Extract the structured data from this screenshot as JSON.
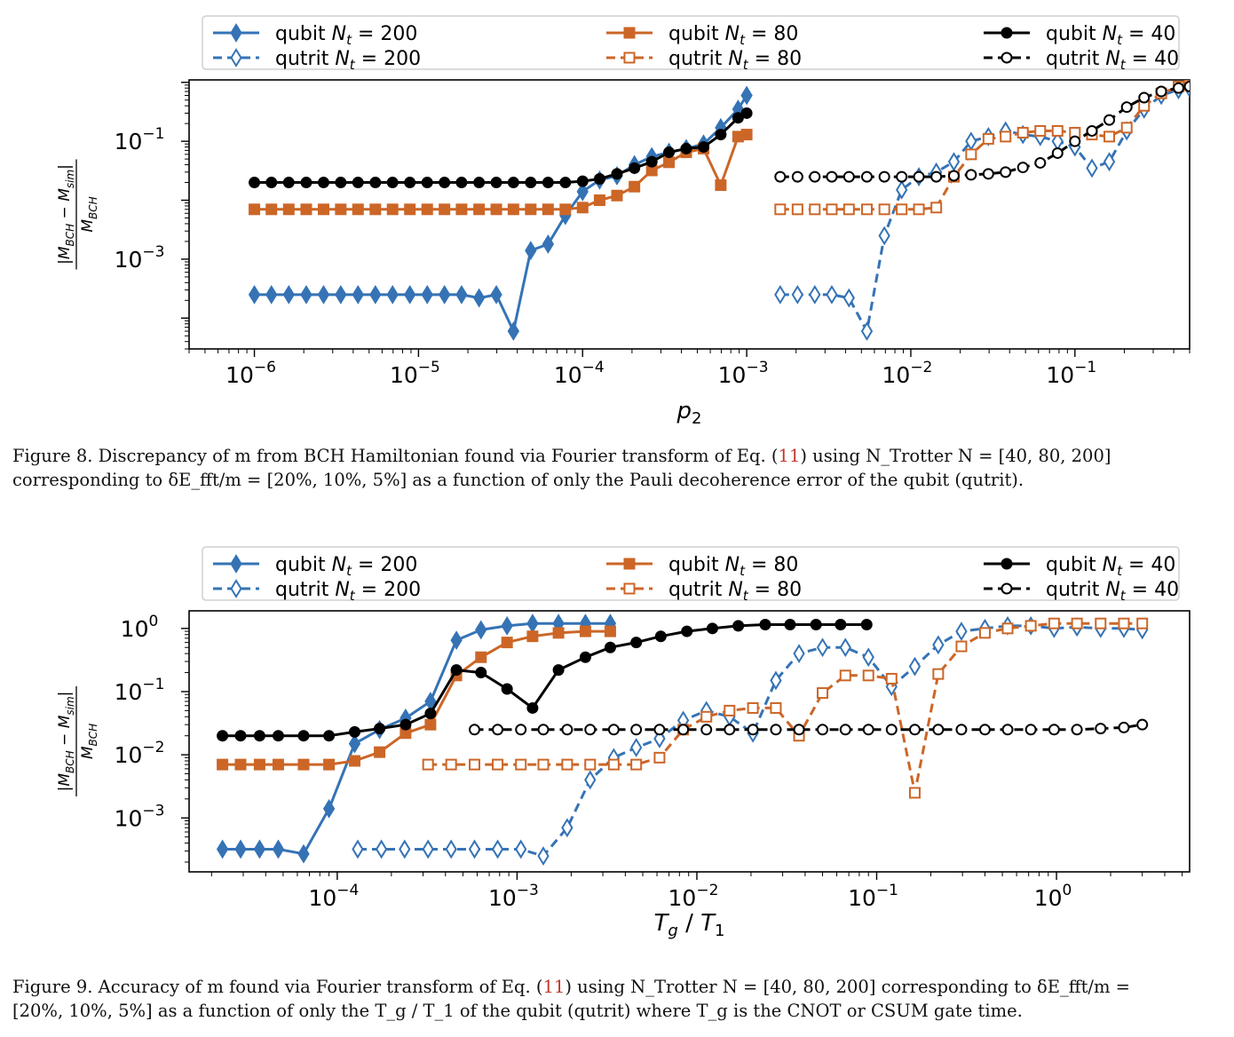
{
  "colors": {
    "blue": "#3573b5",
    "orange": "#cc6627",
    "black": "#000000"
  },
  "series_names": [
    "qubit N_t = 200",
    "qutrit N_t = 200",
    "qubit N_t = 80",
    "qutrit N_t = 80",
    "qubit N_t = 40",
    "qutrit N_t = 40"
  ],
  "legend_labels": [
    {
      "prefix": "qubit ",
      "sub": "200"
    },
    {
      "prefix": "qubit ",
      "sub": "80"
    },
    {
      "prefix": "qubit ",
      "sub": "40"
    },
    {
      "prefix": "qutrit ",
      "sub": "200"
    },
    {
      "prefix": "qutrit ",
      "sub": "80"
    },
    {
      "prefix": "qutrit ",
      "sub": "40"
    }
  ],
  "captions": {
    "fig8_l1_a": "Figure 8. Discrepancy of m from BCH Hamiltonian found via Fourier transform of Eq. (",
    "fig8_ref": "11",
    "fig8_l1_b": ") using N_Trotter N = [40, 80, 200]",
    "fig8_l2": "corresponding to δE_fft/m = [20%, 10%, 5%] as a function of only the Pauli decoherence error of the qubit (qutrit).",
    "fig9_l1_a": "Figure 9. Accuracy of m found via Fourier transform of Eq. (",
    "fig9_ref": "11",
    "fig9_l1_b": ") using N_Trotter N = [40, 80, 200] corresponding to δE_fft/m =",
    "fig9_l2": "[20%, 10%, 5%] as a function of only the T_g / T_1 of the qubit (qutrit) where T_g is the CNOT or CSUM gate time."
  },
  "chart_data": [
    {
      "type": "line",
      "xscale": "log",
      "yscale": "log",
      "xlabel": "p_2",
      "ylabel": "|M_BCH − M_sim| / M_BCH",
      "xlim": [
        4e-07,
        0.5
      ],
      "ylim": [
        3e-05,
        1.1
      ],
      "xticks": [
        {
          "label": "10",
          "exp": "−6",
          "v": 1e-06
        },
        {
          "label": "10",
          "exp": "−5",
          "v": 1e-05
        },
        {
          "label": "10",
          "exp": "−4",
          "v": 0.0001
        },
        {
          "label": "10",
          "exp": "−3",
          "v": 0.001
        },
        {
          "label": "10",
          "exp": "−2",
          "v": 0.01
        },
        {
          "label": "10",
          "exp": "−1",
          "v": 0.1
        }
      ],
      "yticks": [
        {
          "label": "10",
          "exp": "−1",
          "v": 0.1
        },
        {
          "label": "10",
          "exp": "−3",
          "v": 0.001
        }
      ],
      "legend_position": "top",
      "series": [
        {
          "name": "qubit N_t = 200",
          "x": [
            1e-06,
            1.27e-06,
            1.62e-06,
            2.07e-06,
            2.64e-06,
            3.36e-06,
            4.28e-06,
            5.46e-06,
            6.95e-06,
            8.86e-06,
            1.13e-05,
            1.44e-05,
            1.83e-05,
            2.34e-05,
            2.98e-05,
            3.79e-05,
            4.83e-05,
            6.16e-05,
            7.85e-05,
            0.0001,
            0.000127,
            0.000162,
            0.000207,
            0.000264,
            0.000336,
            0.000428,
            0.000546,
            0.000695,
            0.000886,
            0.001
          ],
          "y": [
            0.00025,
            0.00025,
            0.00025,
            0.00025,
            0.00025,
            0.00025,
            0.00025,
            0.00025,
            0.00025,
            0.00025,
            0.00025,
            0.00025,
            0.00025,
            0.00022,
            0.00025,
            6e-05,
            0.0014,
            0.0018,
            0.0055,
            0.014,
            0.022,
            0.026,
            0.04,
            0.055,
            0.065,
            0.075,
            0.09,
            0.17,
            0.35,
            0.6
          ]
        },
        {
          "name": "qutrit N_t = 200",
          "x": [
            0.0016,
            0.00204,
            0.0026,
            0.0033,
            0.0042,
            0.0054,
            0.0069,
            0.0088,
            0.0112,
            0.0143,
            0.0183,
            0.0233,
            0.0297,
            0.0378,
            0.0482,
            0.0615,
            0.0784,
            0.1,
            0.127,
            0.162,
            0.207,
            0.264,
            0.336,
            0.428,
            0.5
          ],
          "y": [
            0.00025,
            0.00025,
            0.00025,
            0.00025,
            0.00022,
            6e-05,
            0.0025,
            0.015,
            0.025,
            0.03,
            0.045,
            0.1,
            0.12,
            0.15,
            0.13,
            0.12,
            0.1,
            0.08,
            0.035,
            0.045,
            0.15,
            0.35,
            0.6,
            0.75,
            0.8
          ]
        },
        {
          "name": "qubit N_t = 80",
          "x": [
            1e-06,
            1.27e-06,
            1.62e-06,
            2.07e-06,
            2.64e-06,
            3.36e-06,
            4.28e-06,
            5.46e-06,
            6.95e-06,
            8.86e-06,
            1.13e-05,
            1.44e-05,
            1.83e-05,
            2.34e-05,
            2.98e-05,
            3.79e-05,
            4.83e-05,
            6.16e-05,
            7.85e-05,
            0.0001,
            0.000127,
            0.000162,
            0.000207,
            0.000264,
            0.000336,
            0.000428,
            0.000546,
            0.000695,
            0.000886,
            0.001
          ],
          "y": [
            0.007,
            0.007,
            0.007,
            0.007,
            0.007,
            0.007,
            0.007,
            0.007,
            0.007,
            0.007,
            0.007,
            0.007,
            0.007,
            0.007,
            0.007,
            0.007,
            0.007,
            0.007,
            0.007,
            0.0075,
            0.01,
            0.012,
            0.017,
            0.032,
            0.044,
            0.065,
            0.075,
            0.018,
            0.12,
            0.13
          ]
        },
        {
          "name": "qutrit N_t = 80",
          "x": [
            0.0016,
            0.00204,
            0.0026,
            0.0033,
            0.0042,
            0.0054,
            0.0069,
            0.0088,
            0.0112,
            0.0143,
            0.0183,
            0.0233,
            0.0297,
            0.0378,
            0.0482,
            0.0615,
            0.0784,
            0.1,
            0.127,
            0.162,
            0.207,
            0.264,
            0.336,
            0.428,
            0.5
          ],
          "y": [
            0.007,
            0.007,
            0.007,
            0.007,
            0.007,
            0.007,
            0.007,
            0.007,
            0.007,
            0.0075,
            0.025,
            0.06,
            0.11,
            0.12,
            0.14,
            0.15,
            0.15,
            0.14,
            0.13,
            0.12,
            0.17,
            0.4,
            0.65,
            0.85,
            0.9
          ]
        },
        {
          "name": "qubit N_t = 40",
          "x": [
            1e-06,
            1.27e-06,
            1.62e-06,
            2.07e-06,
            2.64e-06,
            3.36e-06,
            4.28e-06,
            5.46e-06,
            6.95e-06,
            8.86e-06,
            1.13e-05,
            1.44e-05,
            1.83e-05,
            2.34e-05,
            2.98e-05,
            3.79e-05,
            4.83e-05,
            6.16e-05,
            7.85e-05,
            0.0001,
            0.000127,
            0.000162,
            0.000207,
            0.000264,
            0.000336,
            0.000428,
            0.000546,
            0.000695,
            0.000886,
            0.001
          ],
          "y": [
            0.02,
            0.02,
            0.02,
            0.02,
            0.02,
            0.02,
            0.02,
            0.02,
            0.02,
            0.02,
            0.02,
            0.02,
            0.02,
            0.02,
            0.02,
            0.02,
            0.02,
            0.02,
            0.02,
            0.021,
            0.023,
            0.028,
            0.035,
            0.045,
            0.065,
            0.075,
            0.08,
            0.13,
            0.25,
            0.3
          ]
        },
        {
          "name": "qutrit N_t = 40",
          "x": [
            0.0016,
            0.00204,
            0.0026,
            0.0033,
            0.0042,
            0.0054,
            0.0069,
            0.0088,
            0.0112,
            0.0143,
            0.0183,
            0.0233,
            0.0297,
            0.0378,
            0.0482,
            0.0615,
            0.0784,
            0.1,
            0.127,
            0.162,
            0.207,
            0.264,
            0.336,
            0.428,
            0.5
          ],
          "y": [
            0.025,
            0.025,
            0.025,
            0.025,
            0.025,
            0.025,
            0.025,
            0.025,
            0.025,
            0.025,
            0.026,
            0.027,
            0.028,
            0.03,
            0.036,
            0.043,
            0.063,
            0.1,
            0.15,
            0.23,
            0.38,
            0.55,
            0.7,
            0.8,
            0.85
          ]
        }
      ]
    },
    {
      "type": "line",
      "xscale": "log",
      "yscale": "log",
      "xlabel": "T_g / T_1",
      "ylabel": "|M_BCH − M_sim| / M_BCH",
      "xlim": [
        1.5e-05,
        5.5
      ],
      "ylim": [
        0.00014,
        1.9
      ],
      "xticks": [
        {
          "label": "10",
          "exp": "−4",
          "v": 0.0001
        },
        {
          "label": "10",
          "exp": "−3",
          "v": 0.001
        },
        {
          "label": "10",
          "exp": "−2",
          "v": 0.01
        },
        {
          "label": "10",
          "exp": "−1",
          "v": 0.1
        },
        {
          "label": "10",
          "exp": "0",
          "v": 1
        }
      ],
      "yticks": [
        {
          "label": "10",
          "exp": "0",
          "v": 1
        },
        {
          "label": "10",
          "exp": "−1",
          "v": 0.1
        },
        {
          "label": "10",
          "exp": "−2",
          "v": 0.01
        },
        {
          "label": "10",
          "exp": "−3",
          "v": 0.001
        }
      ],
      "legend_position": "top",
      "series": [
        {
          "name": "qubit N_t = 200",
          "x": [
            2.3e-05,
            2.9e-05,
            3.7e-05,
            4.7e-05,
            6.5e-05,
            9e-05,
            0.000125,
            0.000172,
            0.00024,
            0.00033,
            0.00046,
            0.00063,
            0.00088,
            0.00122,
            0.0017,
            0.0024,
            0.0033
          ],
          "y": [
            0.00032,
            0.00032,
            0.00032,
            0.00032,
            0.00027,
            0.0014,
            0.015,
            0.025,
            0.038,
            0.07,
            0.65,
            0.95,
            1.1,
            1.2,
            1.2,
            1.2,
            1.2
          ]
        },
        {
          "name": "qutrit N_t = 200",
          "x": [
            0.00013,
            0.000176,
            0.000237,
            0.00032,
            0.00043,
            0.00058,
            0.00078,
            0.00105,
            0.0014,
            0.0019,
            0.00255,
            0.00345,
            0.0046,
            0.0062,
            0.0084,
            0.0113,
            0.0152,
            0.0205,
            0.0275,
            0.037,
            0.05,
            0.067,
            0.09,
            0.121,
            0.163,
            0.22,
            0.296,
            0.4,
            0.535,
            0.72,
            0.97,
            1.3,
            1.76,
            2.37,
            3.0
          ],
          "y": [
            0.00032,
            0.00032,
            0.00032,
            0.00032,
            0.00032,
            0.00032,
            0.00032,
            0.00032,
            0.00025,
            0.0007,
            0.004,
            0.009,
            0.013,
            0.018,
            0.035,
            0.05,
            0.04,
            0.022,
            0.15,
            0.4,
            0.5,
            0.5,
            0.35,
            0.12,
            0.25,
            0.55,
            0.9,
            1.0,
            1.1,
            1.1,
            1.0,
            1.05,
            1.0,
            1.0,
            0.95
          ]
        },
        {
          "name": "qubit N_t = 80",
          "x": [
            2.3e-05,
            2.9e-05,
            3.7e-05,
            4.7e-05,
            6.5e-05,
            9e-05,
            0.000125,
            0.000172,
            0.00024,
            0.00033,
            0.00046,
            0.00063,
            0.00088,
            0.00122,
            0.0017,
            0.0024,
            0.0033
          ],
          "y": [
            0.007,
            0.007,
            0.007,
            0.007,
            0.007,
            0.007,
            0.008,
            0.011,
            0.022,
            0.03,
            0.18,
            0.35,
            0.6,
            0.75,
            0.85,
            0.9,
            0.9
          ]
        },
        {
          "name": "qutrit N_t = 80",
          "x": [
            0.00032,
            0.00043,
            0.00058,
            0.00078,
            0.00105,
            0.0014,
            0.0019,
            0.00255,
            0.00345,
            0.0046,
            0.0062,
            0.0084,
            0.0113,
            0.0152,
            0.0205,
            0.0275,
            0.037,
            0.05,
            0.067,
            0.09,
            0.121,
            0.163,
            0.22,
            0.296,
            0.4,
            0.535,
            0.72,
            0.97,
            1.3,
            1.76,
            2.37,
            3.0
          ],
          "y": [
            0.007,
            0.007,
            0.007,
            0.007,
            0.007,
            0.007,
            0.007,
            0.007,
            0.007,
            0.007,
            0.009,
            0.025,
            0.04,
            0.05,
            0.055,
            0.055,
            0.02,
            0.095,
            0.18,
            0.18,
            0.16,
            0.0025,
            0.19,
            0.52,
            0.85,
            1.0,
            1.1,
            1.2,
            1.2,
            1.2,
            1.2,
            1.2
          ]
        },
        {
          "name": "qubit N_t = 40",
          "x": [
            2.3e-05,
            2.9e-05,
            3.7e-05,
            4.7e-05,
            6.5e-05,
            9e-05,
            0.000125,
            0.000172,
            0.00024,
            0.00033,
            0.00046,
            0.00063,
            0.00088,
            0.00122,
            0.0017,
            0.0024,
            0.0033,
            0.0046,
            0.0063,
            0.0088,
            0.0122,
            0.017,
            0.024,
            0.033,
            0.046,
            0.063,
            0.088
          ],
          "y": [
            0.02,
            0.02,
            0.02,
            0.02,
            0.02,
            0.02,
            0.023,
            0.026,
            0.03,
            0.045,
            0.22,
            0.2,
            0.11,
            0.055,
            0.22,
            0.35,
            0.5,
            0.6,
            0.75,
            0.9,
            1.0,
            1.1,
            1.15,
            1.15,
            1.15,
            1.15,
            1.15
          ]
        },
        {
          "name": "qutrit N_t = 40",
          "x": [
            0.00058,
            0.00078,
            0.00105,
            0.0014,
            0.0019,
            0.00255,
            0.00345,
            0.0046,
            0.0062,
            0.0084,
            0.0113,
            0.0152,
            0.0205,
            0.0275,
            0.037,
            0.05,
            0.067,
            0.09,
            0.121,
            0.163,
            0.22,
            0.296,
            0.4,
            0.535,
            0.72,
            0.97,
            1.3,
            1.76,
            2.37,
            3.0
          ],
          "y": [
            0.025,
            0.025,
            0.025,
            0.025,
            0.025,
            0.025,
            0.025,
            0.025,
            0.025,
            0.025,
            0.025,
            0.025,
            0.025,
            0.025,
            0.025,
            0.025,
            0.025,
            0.025,
            0.025,
            0.025,
            0.025,
            0.025,
            0.025,
            0.025,
            0.025,
            0.025,
            0.025,
            0.026,
            0.027,
            0.03
          ]
        }
      ]
    }
  ]
}
